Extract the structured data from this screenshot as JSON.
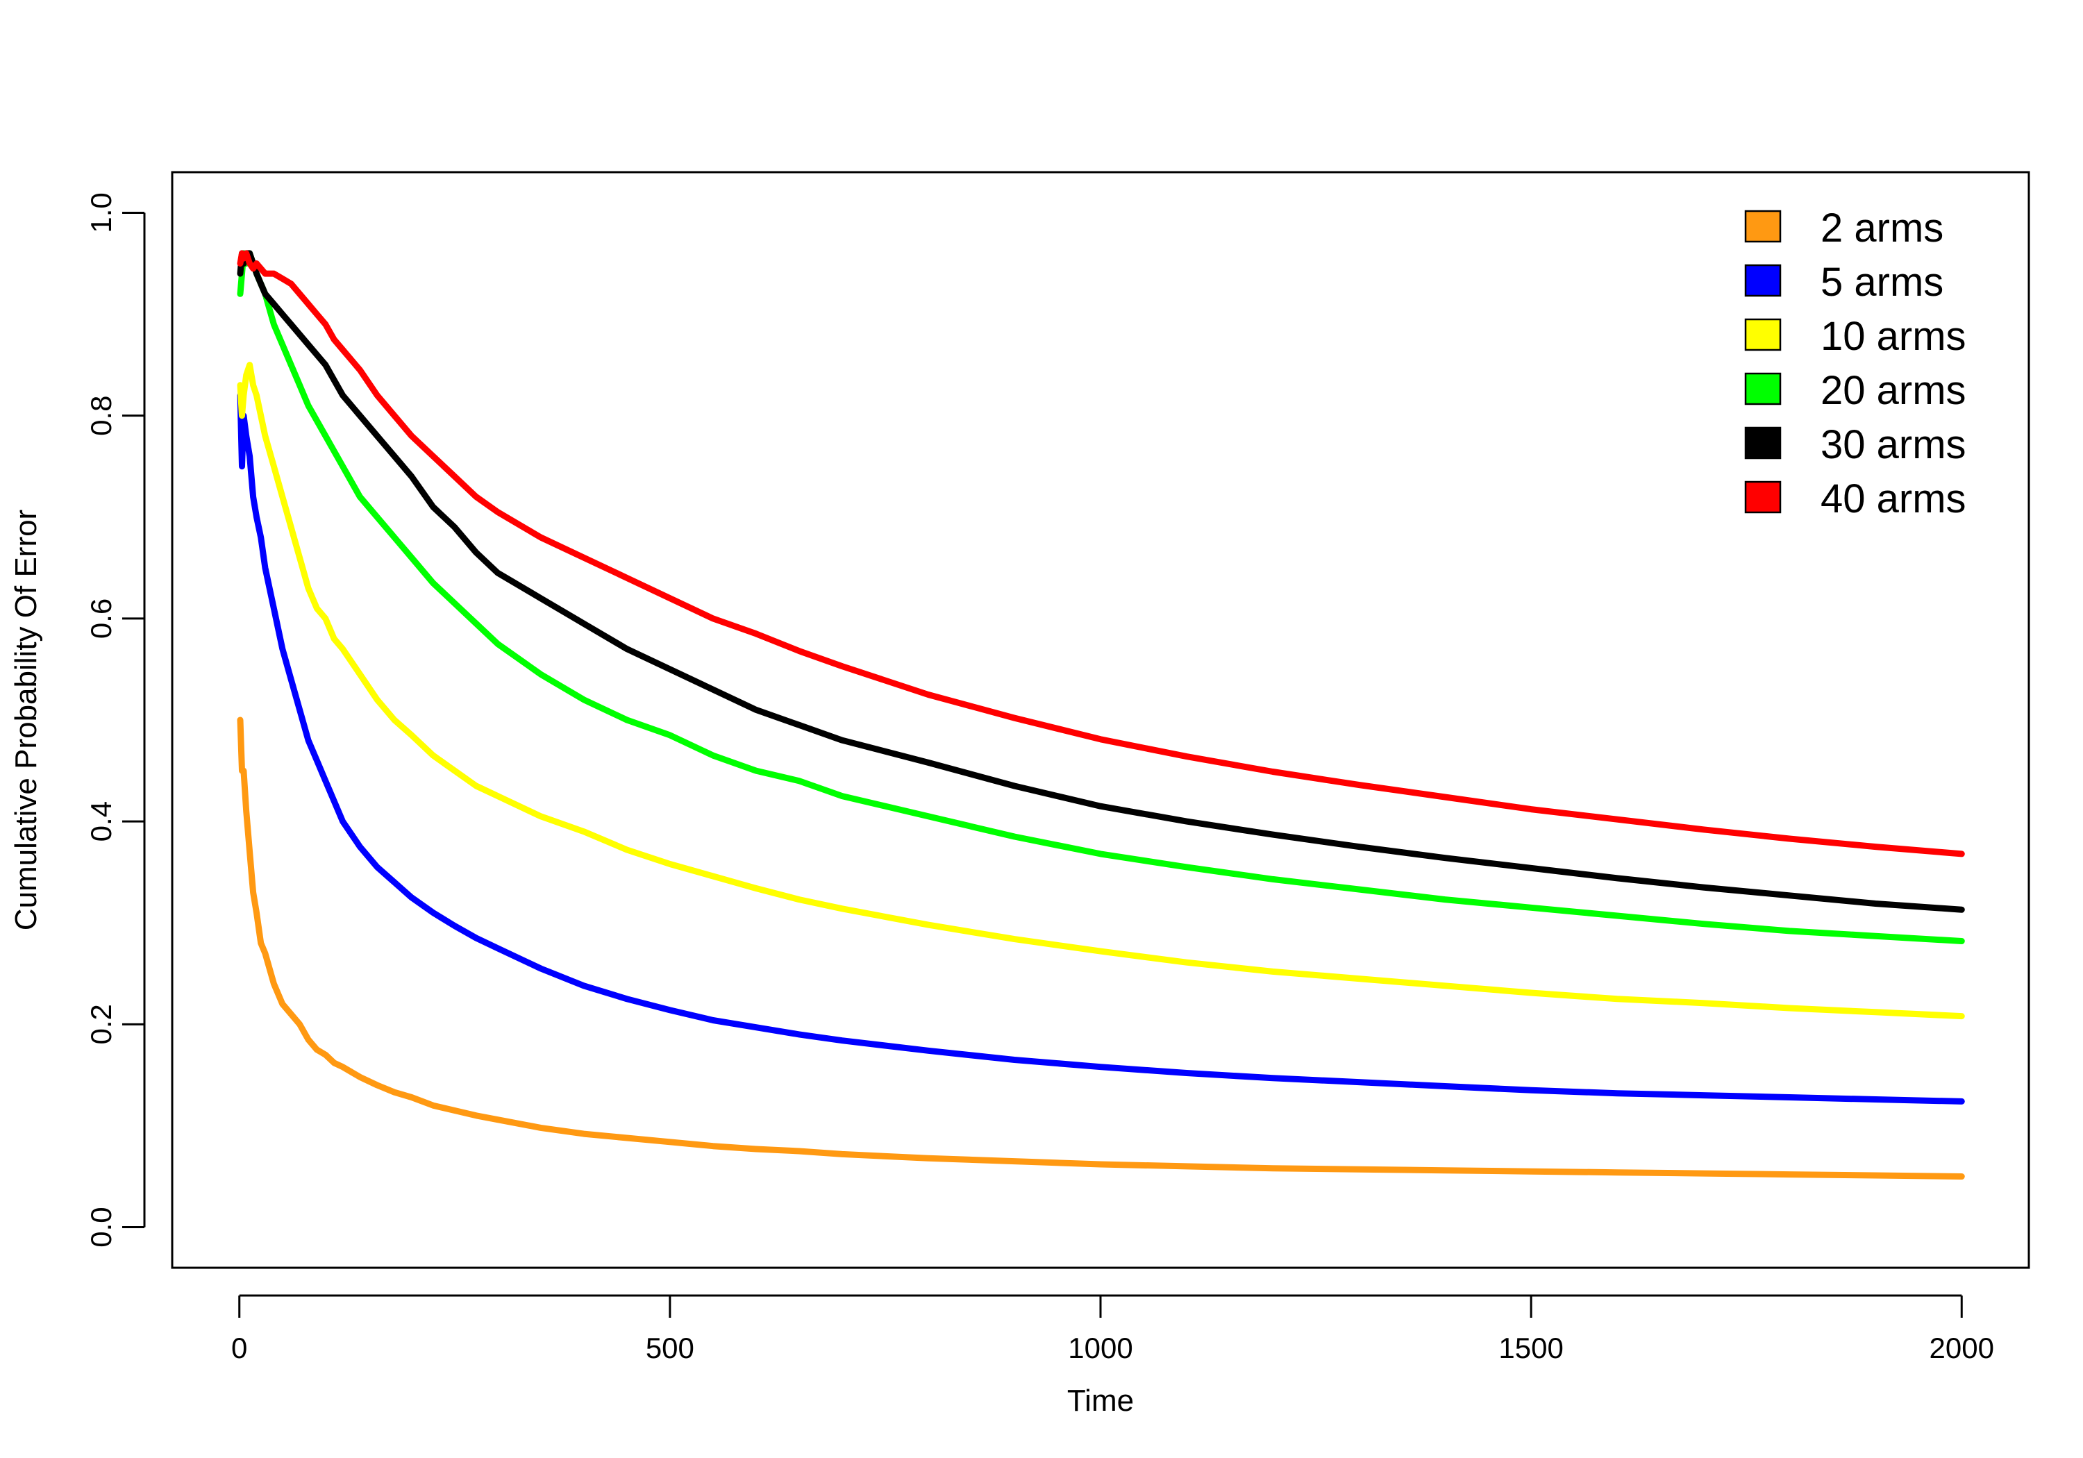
{
  "chart_data": {
    "type": "line",
    "title": "",
    "xlabel": "Time",
    "ylabel": "Cumulative Probability Of Error",
    "xlim": [
      -78,
      2078
    ],
    "ylim": [
      -0.04,
      1.04
    ],
    "xticks": [
      0,
      500,
      1000,
      1500,
      2000
    ],
    "yticks": [
      0.0,
      0.2,
      0.4,
      0.6,
      0.8,
      1.0
    ],
    "xtick_labels": [
      "0",
      "500",
      "1000",
      "1500",
      "2000"
    ],
    "ytick_labels": [
      "0.0",
      "0.2",
      "0.4",
      "0.6",
      "0.8",
      "1.0"
    ],
    "grid": false,
    "legend_position": "top-right",
    "series": [
      {
        "name": "2 arms",
        "color": "#FF9912",
        "x": [
          1,
          3,
          5,
          8,
          12,
          16,
          20,
          25,
          30,
          40,
          50,
          60,
          70,
          80,
          90,
          100,
          110,
          120,
          140,
          160,
          180,
          200,
          225,
          250,
          275,
          300,
          350,
          400,
          450,
          500,
          550,
          600,
          650,
          700,
          800,
          900,
          1000,
          1100,
          1200,
          1300,
          1400,
          1500,
          1600,
          1700,
          1800,
          1900,
          2000
        ],
        "y": [
          0.5,
          0.45,
          0.45,
          0.41,
          0.37,
          0.33,
          0.31,
          0.28,
          0.27,
          0.24,
          0.22,
          0.21,
          0.2,
          0.185,
          0.175,
          0.17,
          0.162,
          0.158,
          0.148,
          0.14,
          0.133,
          0.128,
          0.12,
          0.115,
          0.11,
          0.106,
          0.098,
          0.092,
          0.088,
          0.084,
          0.08,
          0.077,
          0.075,
          0.072,
          0.068,
          0.065,
          0.062,
          0.06,
          0.058,
          0.057,
          0.056,
          0.055,
          0.054,
          0.053,
          0.052,
          0.051,
          0.05
        ]
      },
      {
        "name": "5 arms",
        "color": "#0000FF",
        "x": [
          1,
          3,
          5,
          8,
          12,
          16,
          20,
          25,
          30,
          40,
          50,
          60,
          70,
          80,
          90,
          100,
          110,
          120,
          140,
          160,
          180,
          200,
          225,
          250,
          275,
          300,
          350,
          400,
          450,
          500,
          550,
          600,
          650,
          700,
          800,
          900,
          1000,
          1100,
          1200,
          1300,
          1400,
          1500,
          1600,
          1700,
          1800,
          1900,
          2000
        ],
        "y": [
          0.82,
          0.75,
          0.8,
          0.78,
          0.76,
          0.72,
          0.7,
          0.68,
          0.65,
          0.61,
          0.57,
          0.54,
          0.51,
          0.48,
          0.46,
          0.44,
          0.42,
          0.4,
          0.375,
          0.355,
          0.34,
          0.325,
          0.31,
          0.297,
          0.285,
          0.275,
          0.255,
          0.238,
          0.225,
          0.214,
          0.204,
          0.197,
          0.19,
          0.184,
          0.174,
          0.165,
          0.158,
          0.152,
          0.147,
          0.143,
          0.139,
          0.135,
          0.132,
          0.13,
          0.128,
          0.126,
          0.124
        ]
      },
      {
        "name": "10 arms",
        "color": "#FFFF00",
        "x": [
          1,
          3,
          5,
          8,
          12,
          16,
          20,
          25,
          30,
          40,
          50,
          60,
          70,
          80,
          90,
          100,
          110,
          120,
          140,
          160,
          180,
          200,
          225,
          250,
          275,
          300,
          350,
          400,
          450,
          500,
          550,
          600,
          650,
          700,
          800,
          900,
          1000,
          1100,
          1200,
          1300,
          1400,
          1500,
          1600,
          1700,
          1800,
          1900,
          2000
        ],
        "y": [
          0.83,
          0.8,
          0.82,
          0.84,
          0.85,
          0.83,
          0.82,
          0.8,
          0.78,
          0.75,
          0.72,
          0.69,
          0.66,
          0.63,
          0.61,
          0.6,
          0.58,
          0.57,
          0.545,
          0.52,
          0.5,
          0.485,
          0.465,
          0.45,
          0.435,
          0.425,
          0.405,
          0.39,
          0.372,
          0.358,
          0.346,
          0.334,
          0.323,
          0.314,
          0.298,
          0.284,
          0.272,
          0.261,
          0.252,
          0.245,
          0.238,
          0.231,
          0.225,
          0.221,
          0.216,
          0.212,
          0.208
        ]
      },
      {
        "name": "20 arms",
        "color": "#00FF00",
        "x": [
          1,
          3,
          5,
          8,
          12,
          16,
          20,
          25,
          30,
          40,
          50,
          60,
          70,
          80,
          90,
          100,
          110,
          120,
          140,
          160,
          180,
          200,
          225,
          250,
          275,
          300,
          350,
          400,
          450,
          500,
          550,
          600,
          650,
          700,
          800,
          900,
          1000,
          1100,
          1200,
          1300,
          1400,
          1500,
          1600,
          1700,
          1800,
          1900,
          2000
        ],
        "y": [
          0.92,
          0.94,
          0.96,
          0.95,
          0.96,
          0.95,
          0.94,
          0.93,
          0.92,
          0.89,
          0.87,
          0.85,
          0.83,
          0.81,
          0.795,
          0.78,
          0.765,
          0.75,
          0.72,
          0.7,
          0.68,
          0.66,
          0.635,
          0.615,
          0.595,
          0.575,
          0.545,
          0.52,
          0.5,
          0.485,
          0.465,
          0.45,
          0.44,
          0.425,
          0.405,
          0.385,
          0.368,
          0.355,
          0.343,
          0.333,
          0.323,
          0.315,
          0.307,
          0.299,
          0.292,
          0.287,
          0.282
        ]
      },
      {
        "name": "30 arms",
        "color": "#000000",
        "x": [
          1,
          3,
          5,
          8,
          12,
          16,
          20,
          25,
          30,
          40,
          50,
          60,
          70,
          80,
          90,
          100,
          110,
          120,
          140,
          160,
          180,
          200,
          225,
          250,
          275,
          300,
          350,
          400,
          450,
          500,
          550,
          600,
          650,
          700,
          800,
          900,
          1000,
          1100,
          1200,
          1300,
          1400,
          1500,
          1600,
          1700,
          1800,
          1900,
          2000
        ],
        "y": [
          0.94,
          0.96,
          0.95,
          0.96,
          0.96,
          0.95,
          0.94,
          0.93,
          0.92,
          0.91,
          0.9,
          0.89,
          0.88,
          0.87,
          0.86,
          0.85,
          0.835,
          0.82,
          0.8,
          0.78,
          0.76,
          0.74,
          0.71,
          0.69,
          0.665,
          0.645,
          0.62,
          0.595,
          0.57,
          0.55,
          0.53,
          0.51,
          0.495,
          0.48,
          0.458,
          0.435,
          0.415,
          0.4,
          0.387,
          0.375,
          0.364,
          0.354,
          0.344,
          0.335,
          0.327,
          0.319,
          0.313
        ]
      },
      {
        "name": "40 arms",
        "color": "#FF0000",
        "x": [
          1,
          3,
          5,
          8,
          12,
          16,
          20,
          25,
          30,
          40,
          50,
          60,
          70,
          80,
          90,
          100,
          110,
          120,
          140,
          160,
          180,
          200,
          225,
          250,
          275,
          300,
          350,
          400,
          450,
          500,
          550,
          600,
          650,
          700,
          800,
          900,
          1000,
          1100,
          1200,
          1300,
          1400,
          1500,
          1600,
          1700,
          1800,
          1900,
          2000
        ],
        "y": [
          0.95,
          0.96,
          0.955,
          0.96,
          0.95,
          0.945,
          0.95,
          0.945,
          0.94,
          0.94,
          0.935,
          0.93,
          0.92,
          0.91,
          0.9,
          0.89,
          0.875,
          0.865,
          0.845,
          0.82,
          0.8,
          0.78,
          0.76,
          0.74,
          0.72,
          0.705,
          0.68,
          0.66,
          0.64,
          0.62,
          0.6,
          0.585,
          0.568,
          0.553,
          0.525,
          0.502,
          0.481,
          0.464,
          0.449,
          0.436,
          0.424,
          0.412,
          0.402,
          0.392,
          0.383,
          0.375,
          0.368
        ]
      }
    ]
  }
}
